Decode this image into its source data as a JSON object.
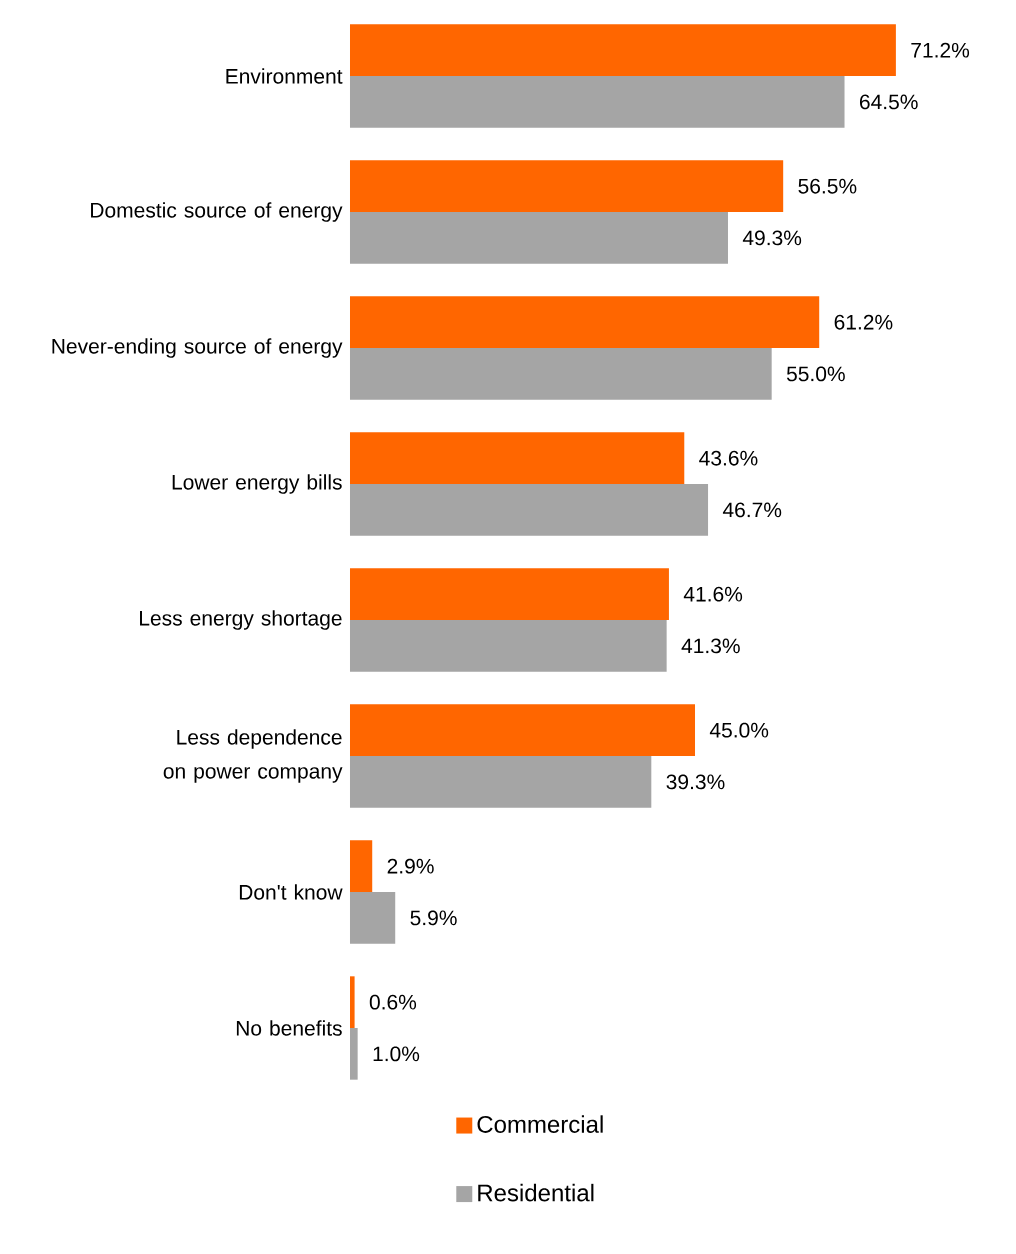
{
  "chart_data": {
    "type": "bar",
    "orientation": "horizontal",
    "legend": "bottom",
    "categories": [
      "Environment",
      "Domestic source of energy",
      "Never-ending source of energy",
      "Lower energy bills",
      "Less energy shortage",
      "Less dependence on power company",
      "Don't know",
      "No benefits"
    ],
    "series": [
      {
        "name": "Commercial",
        "color": "#ff6600",
        "values": [
          71.2,
          56.5,
          61.2,
          43.6,
          41.6,
          45.0,
          2.9,
          0.6
        ],
        "value_labels": [
          "71.2%",
          "56.5%",
          "61.2%",
          "43.6%",
          "41.6%",
          "45.0%",
          "2.9%",
          "0.6%"
        ]
      },
      {
        "name": "Residential",
        "color": "#a5a5a5",
        "values": [
          64.5,
          49.3,
          55.0,
          46.7,
          41.3,
          39.3,
          5.9,
          1.0
        ],
        "value_labels": [
          "64.5%",
          "49.3%",
          "55.0%",
          "46.7%",
          "41.3%",
          "39.3%",
          "5.9%",
          "1.0%"
        ]
      }
    ]
  }
}
